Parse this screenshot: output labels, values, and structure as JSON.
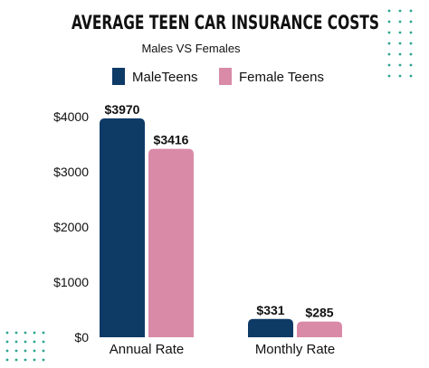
{
  "chart_data": {
    "type": "bar",
    "title": "AVERAGE TEEN CAR INSURANCE COSTS",
    "subtitle": "Males VS Females",
    "categories": [
      "Annual Rate",
      "Monthly Rate"
    ],
    "series": [
      {
        "name": "MaleTeens",
        "values": [
          3970,
          331
        ],
        "labels": [
          "$3970",
          "$331"
        ]
      },
      {
        "name": "Female Teens",
        "values": [
          3416,
          285
        ],
        "labels": [
          "$3416",
          "$285"
        ]
      }
    ],
    "yticks": [
      {
        "value": 0,
        "label": "$0"
      },
      {
        "value": 1000,
        "label": "$1000"
      },
      {
        "value": 2000,
        "label": "$2000"
      },
      {
        "value": 3000,
        "label": "$3000"
      },
      {
        "value": 4000,
        "label": "$4000"
      }
    ],
    "ylim": [
      0,
      4000
    ],
    "xlabel": "",
    "ylabel": "",
    "grid": false,
    "legend_position": "top",
    "colors": {
      "male": "#0e3a66",
      "female": "#d98aa7",
      "text": "#111111",
      "dots": "#2aa58f"
    }
  }
}
